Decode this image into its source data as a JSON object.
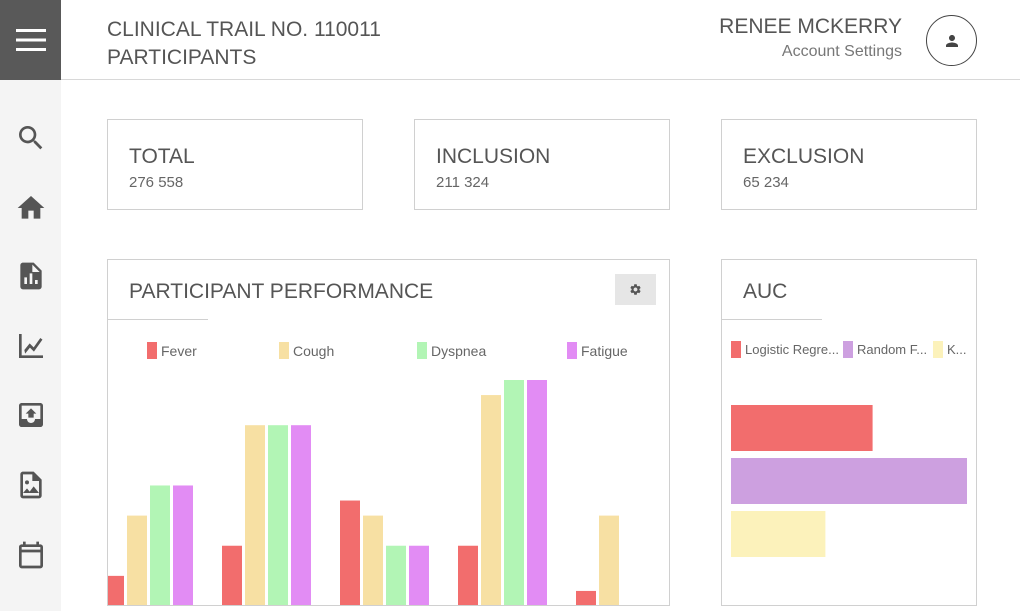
{
  "header": {
    "title_line1": "CLINICAL TRAIL NO. 110011",
    "title_line2": "PARTICIPANTS",
    "user_name": "RENEE MCKERRY",
    "account_link": "Account Settings"
  },
  "sidebar": {
    "icons": [
      "menu-icon",
      "search-icon",
      "home-icon",
      "report-icon",
      "line-chart-icon",
      "inbox-upload-icon",
      "image-file-icon",
      "calendar-icon"
    ]
  },
  "stats": [
    {
      "label": "TOTAL",
      "value": "276 558"
    },
    {
      "label": "INCLUSION",
      "value": "211 324"
    },
    {
      "label": "EXCLUSION",
      "value": "65 234"
    }
  ],
  "performance": {
    "title": "PARTICIPANT PERFORMANCE",
    "legend": [
      {
        "label": "Fever",
        "color": "#f26d6d"
      },
      {
        "label": "Cough",
        "color": "#f7e0a3"
      },
      {
        "label": "Dyspnea",
        "color": "#b2f5b5"
      },
      {
        "label": "Fatigue",
        "color": "#e28cf4"
      }
    ]
  },
  "auc": {
    "title": "AUC",
    "legend": [
      {
        "label": "Logistic Regre...",
        "color": "#f26d6d"
      },
      {
        "label": "Random F...",
        "color": "#cda0e0"
      },
      {
        "label": "K...",
        "color": "#fcf2bb"
      }
    ]
  },
  "chart_data": [
    {
      "type": "bar",
      "title": "PARTICIPANT PERFORMANCE",
      "categories": [
        "",
        "",
        "",
        "",
        ""
      ],
      "series": [
        {
          "name": "Fever",
          "values": [
            1,
            2,
            3.5,
            2,
            0.5
          ],
          "color": "#f26d6d"
        },
        {
          "name": "Cough",
          "values": [
            3,
            6,
            3,
            7,
            3
          ],
          "color": "#f7e0a3"
        },
        {
          "name": "Dyspnea",
          "values": [
            4,
            6,
            2,
            7.5,
            0
          ],
          "color": "#b2f5b5"
        },
        {
          "name": "Fatigue",
          "values": [
            4,
            6,
            2,
            7.5,
            0
          ],
          "color": "#e28cf4"
        }
      ],
      "ylim": [
        0,
        7.5
      ],
      "grid": false,
      "legend_position": "top"
    },
    {
      "type": "bar",
      "orientation": "horizontal",
      "title": "AUC",
      "series": [
        {
          "name": "Logistic Regre...",
          "value": 0.6,
          "color": "#f26d6d"
        },
        {
          "name": "Random F...",
          "value": 1.0,
          "color": "#cda0e0"
        },
        {
          "name": "K...",
          "value": 0.4,
          "color": "#fcf2bb"
        }
      ],
      "xlim": [
        0,
        1.0
      ],
      "legend_position": "top"
    }
  ]
}
